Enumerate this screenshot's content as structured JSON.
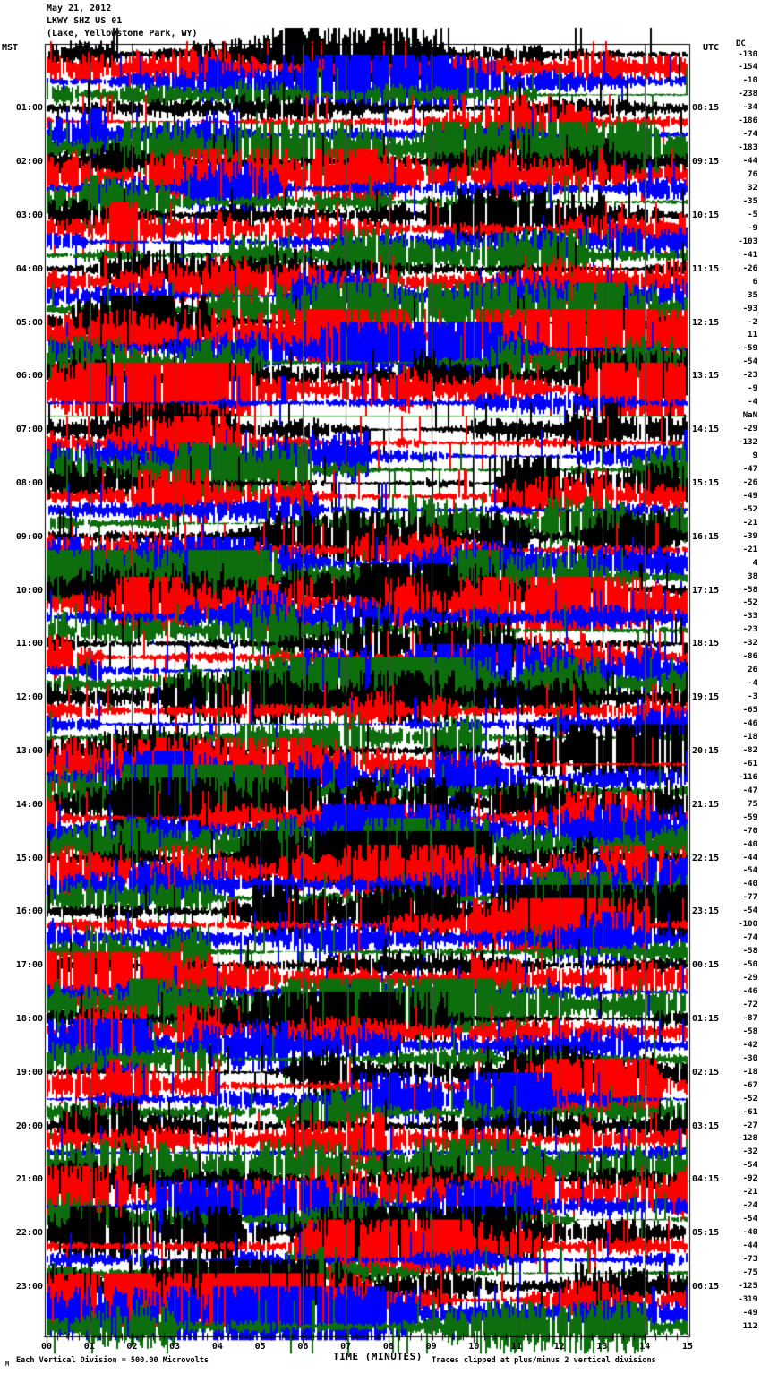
{
  "title": {
    "date": "May 21, 2012",
    "station": "LKWY SHZ US 01",
    "location": "(Lake, Yellowstone Park, WY)"
  },
  "header": {
    "left_tz": "MST",
    "right_tz": "UTC",
    "dc_label": "DC"
  },
  "x_axis": {
    "title": "TIME (MINUTES)",
    "tick_labels": [
      "00",
      "01",
      "02",
      "03",
      "04",
      "05",
      "06",
      "07",
      "08",
      "09",
      "10",
      "11",
      "12",
      "13",
      "14",
      "15"
    ]
  },
  "footer": {
    "corner_mark": "M",
    "scale_note": "Each Vertical Division = 500.00 Microvolts",
    "clip_note": "Traces clipped at plus/minus 2 vertical divisions"
  },
  "chart_data": {
    "type": "line",
    "description": "24-hour webicorder seismogram: 96 horizontal traces, 15 minutes per trace, colors cycling black/red/blue/green; left labels MST trace start hour, right labels UTC trace end time, far-right column per-trace DC offset",
    "x_minutes_range": [
      0,
      15
    ],
    "traces_per_hour": 4,
    "trace_count": 96,
    "microvolts_per_division": 500,
    "clip_divisions": 2,
    "left_hour_labels_mst": [
      "01:00",
      "02:00",
      "03:00",
      "04:00",
      "05:00",
      "06:00",
      "07:00",
      "08:00",
      "09:00",
      "10:00",
      "11:00",
      "12:00",
      "13:00",
      "14:00",
      "15:00",
      "16:00",
      "17:00",
      "18:00",
      "19:00",
      "20:00",
      "21:00",
      "22:00",
      "23:00"
    ],
    "right_hour_labels_utc": [
      "08:15",
      "09:15",
      "10:15",
      "11:15",
      "12:15",
      "13:15",
      "14:15",
      "15:15",
      "16:15",
      "17:15",
      "18:15",
      "19:15",
      "20:15",
      "21:15",
      "22:15",
      "23:15",
      "00:15",
      "01:15",
      "02:15",
      "03:15",
      "04:15",
      "05:15",
      "06:15"
    ],
    "dc_offsets": [
      -130,
      -154,
      -10,
      -238,
      -34,
      -186,
      -74,
      -183,
      -44,
      76,
      32,
      -35,
      -5,
      -9,
      -103,
      -41,
      -26,
      6,
      35,
      -93,
      -2,
      11,
      -59,
      -54,
      -23,
      -9,
      -4,
      "NaN",
      -29,
      -132,
      9,
      -47,
      -26,
      -49,
      -52,
      -21,
      -39,
      -21,
      4,
      38,
      -58,
      -52,
      -33,
      -23,
      -32,
      -86,
      26,
      -4,
      -3,
      -65,
      -46,
      -18,
      -82,
      -61,
      -116,
      -47,
      75,
      -59,
      -70,
      -40,
      -44,
      -54,
      -40,
      -77,
      -54,
      -100,
      -74,
      -58,
      -50,
      -29,
      -46,
      -72,
      -87,
      -58,
      -42,
      -30,
      -18,
      -67,
      -52,
      -61,
      -27,
      -128,
      -32,
      -54,
      -92,
      -21,
      -24,
      -54,
      -40,
      -44,
      -73,
      -75,
      -125,
      -319,
      -49,
      112
    ],
    "trace_color_cycle": [
      "#000000",
      "#ff0000",
      "#0000ff",
      "#0c6e0c"
    ],
    "gridline_color": "#4d4d4d",
    "grid": "vertical gray line each minute",
    "legend_position": "none"
  },
  "colors": {
    "background": "#ffffff",
    "text": "#000000",
    "frame": "#000000"
  }
}
